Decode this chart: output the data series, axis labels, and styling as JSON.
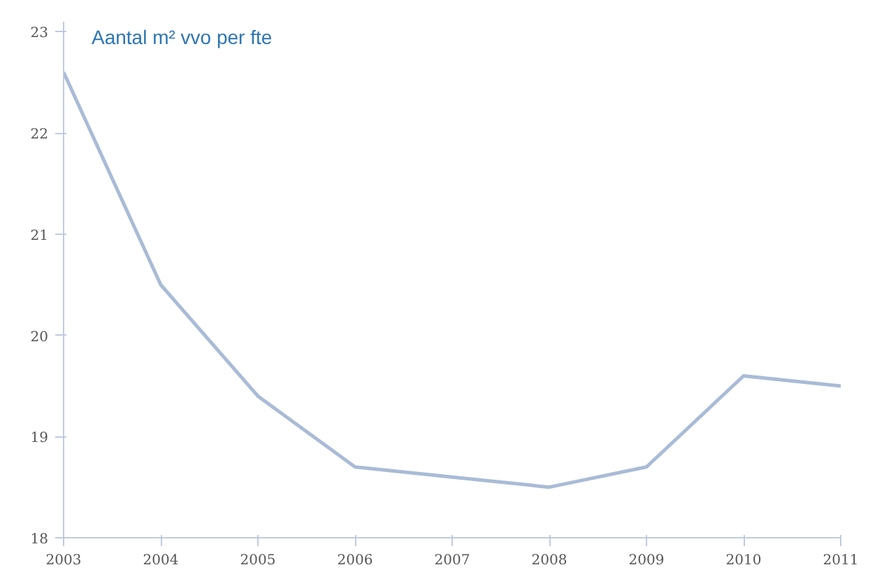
{
  "chart_data": {
    "type": "line",
    "title": "Aantal m² vvo per fte",
    "x": [
      2003,
      2004,
      2005,
      2006,
      2007,
      2008,
      2009,
      2010,
      2011
    ],
    "series": [
      {
        "color": "#a9bbd6",
        "values": [
          22.6,
          20.5,
          19.4,
          18.7,
          18.6,
          18.5,
          18.7,
          19.6,
          19.5
        ]
      }
    ],
    "xlim": [
      2003,
      2011
    ],
    "xticks": [
      2003,
      2004,
      2005,
      2006,
      2007,
      2008,
      2009,
      2010,
      2011
    ],
    "ylim": [
      18,
      23.1
    ],
    "yticks": [
      18,
      19,
      20,
      21,
      22,
      23
    ],
    "grid": false
  }
}
